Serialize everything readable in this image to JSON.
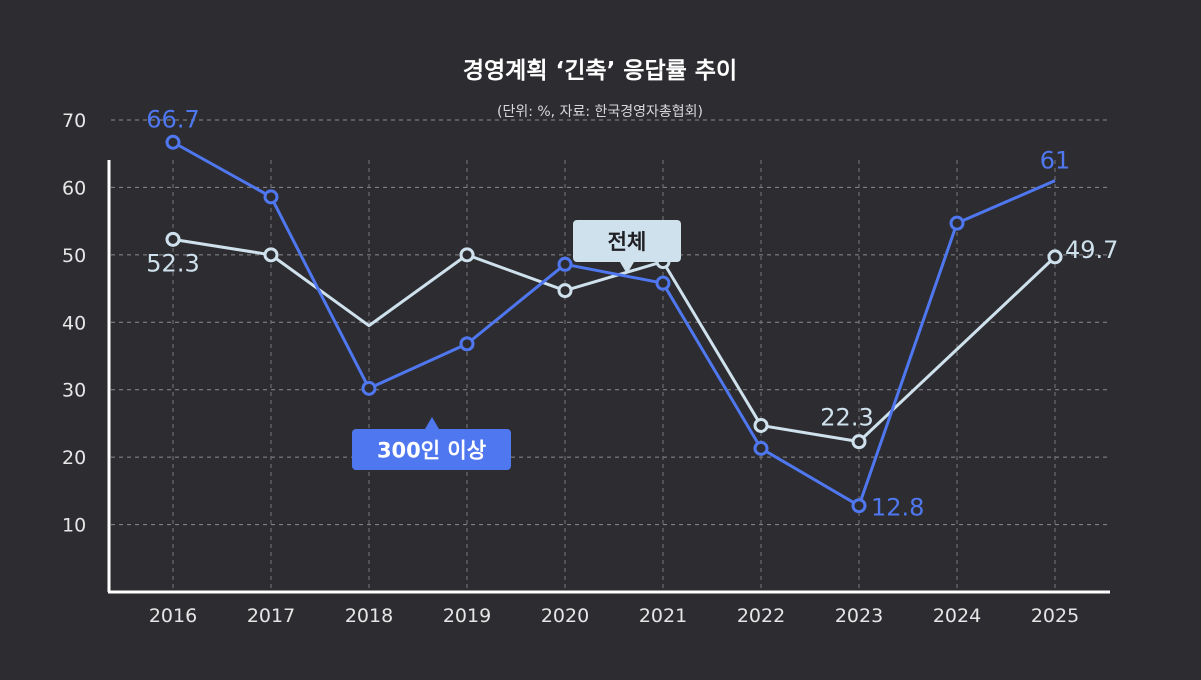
{
  "header": {
    "title": "경영계획 ‘긴축’ 응답률 추이",
    "subtitle": "(단위: %, 자료: 한국경영자총협회)"
  },
  "chart_data": {
    "type": "line",
    "x": [
      "2016",
      "2017",
      "2018",
      "2019",
      "2020",
      "2021",
      "2022",
      "2023",
      "2024",
      "2025"
    ],
    "ylim": [
      0,
      70
    ],
    "yticks": [
      10,
      20,
      30,
      40,
      50,
      60,
      70
    ],
    "grid": true,
    "series": [
      {
        "name": "300인 이상",
        "color": "#4f77f0",
        "values": [
          66.7,
          58.6,
          30.2,
          36.8,
          48.6,
          45.8,
          21.3,
          12.8,
          54.7,
          61
        ],
        "markers": [
          true,
          true,
          true,
          true,
          true,
          true,
          true,
          true,
          true,
          false
        ],
        "labels": [
          {
            "index": 0,
            "text": "66.7"
          },
          {
            "index": 7,
            "text": "12.8"
          },
          {
            "index": 9,
            "text": "61"
          }
        ]
      },
      {
        "name": "전체",
        "color": "#cfe1ec",
        "values": [
          52.3,
          50.0,
          39.5,
          50.0,
          44.7,
          49.0,
          24.7,
          22.3,
          36.0,
          49.7
        ],
        "markers": [
          true,
          true,
          false,
          true,
          true,
          true,
          true,
          true,
          false,
          true
        ],
        "labels": [
          {
            "index": 0,
            "text": "52.3"
          },
          {
            "index": 7,
            "text": "22.3"
          },
          {
            "index": 9,
            "text": "49.7"
          }
        ]
      }
    ],
    "callouts": [
      {
        "series": 0,
        "text": "300인 이상",
        "bg": "#4f77f0",
        "fg": "#ffffff"
      },
      {
        "series": 1,
        "text": "전체",
        "bg": "#cfe1ec",
        "fg": "#1f1f24"
      }
    ]
  }
}
